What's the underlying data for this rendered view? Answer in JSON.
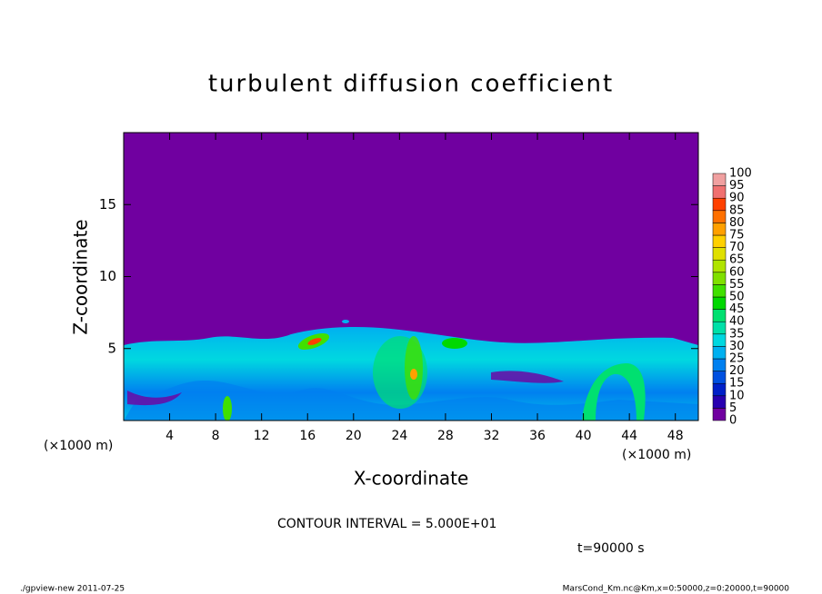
{
  "chart_data": {
    "type": "heatmap",
    "title": "turbulent diffusion coefficient",
    "x_label": "X-coordinate",
    "y_label": "Z-coordinate",
    "x_unit": "(×1000 m)",
    "y_unit": "(×1000 m)",
    "xlim": [
      0,
      50
    ],
    "ylim": [
      0,
      20
    ],
    "xticks": [
      4,
      8,
      12,
      16,
      20,
      24,
      28,
      32,
      36,
      40,
      44,
      48
    ],
    "yticks": [
      5,
      10,
      15
    ],
    "colorbar": {
      "levels": [
        0,
        5,
        10,
        15,
        20,
        25,
        30,
        35,
        40,
        45,
        50,
        55,
        60,
        65,
        70,
        75,
        80,
        85,
        90,
        95,
        100
      ],
      "colors": [
        "#7000a0",
        "#2800b0",
        "#0020c8",
        "#0050e0",
        "#0080f0",
        "#00b0f0",
        "#00d8e0",
        "#00e0a8",
        "#00e070",
        "#00d800",
        "#40e000",
        "#80e000",
        "#b0e400",
        "#e0e000",
        "#ffd000",
        "#ffa000",
        "#ff7000",
        "#ff4000",
        "#f07070",
        "#f0a0a0"
      ]
    },
    "annotations": [
      "CONTOUR INTERVAL = 5.000E+01",
      "t=90000 s"
    ],
    "footer_left": "./gpview-new  2011-07-25",
    "footer_right": "MarsCond_Km.nc@Km,x=0:50000,z=0:20000,t=90000"
  }
}
